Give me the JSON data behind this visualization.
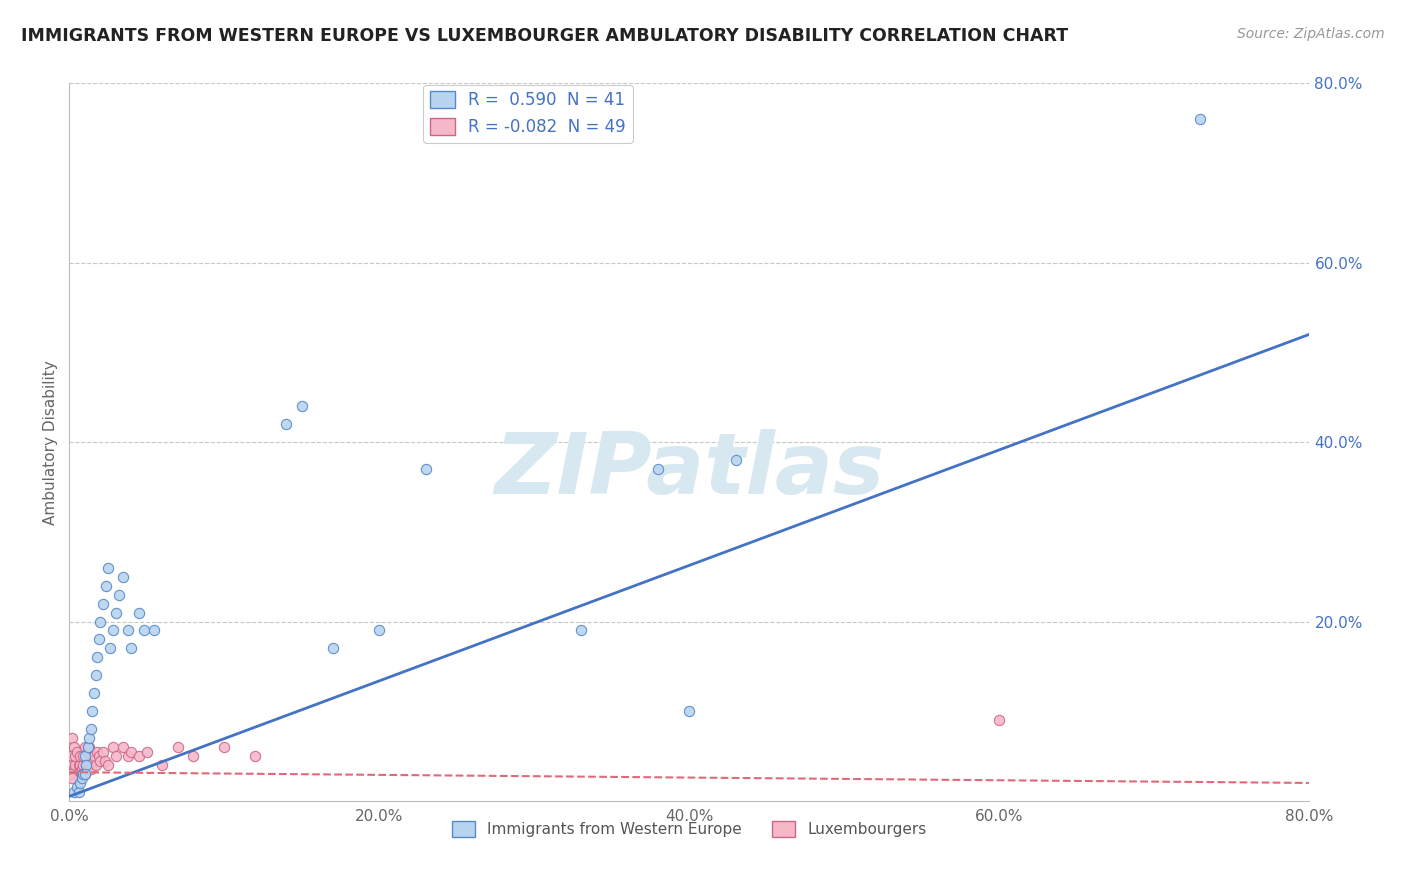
{
  "title": "IMMIGRANTS FROM WESTERN EUROPE VS LUXEMBOURGER AMBULATORY DISABILITY CORRELATION CHART",
  "source": "Source: ZipAtlas.com",
  "ylabel": "Ambulatory Disability",
  "xlim": [
    0.0,
    0.8
  ],
  "ylim": [
    0.0,
    0.8
  ],
  "xtick_labels": [
    "0.0%",
    "20.0%",
    "40.0%",
    "60.0%",
    "80.0%"
  ],
  "xtick_vals": [
    0.0,
    0.2,
    0.4,
    0.6,
    0.8
  ],
  "ytick_labels": [
    "80.0%",
    "60.0%",
    "40.0%",
    "20.0%"
  ],
  "ytick_vals": [
    0.8,
    0.6,
    0.4,
    0.2
  ],
  "grid_color": "#c8c8c8",
  "bg_color": "#ffffff",
  "blue_R": 0.59,
  "blue_N": 41,
  "pink_R": -0.082,
  "pink_N": 49,
  "blue_color": "#b8d4ee",
  "pink_color": "#f5b8c8",
  "blue_edge_color": "#5588cc",
  "pink_edge_color": "#cc6688",
  "blue_line_color": "#4472c4",
  "pink_line_color": "#e06878",
  "blue_line_x0": 0.0,
  "blue_line_y0": 0.005,
  "blue_line_x1": 0.8,
  "blue_line_y1": 0.52,
  "pink_line_x0": 0.0,
  "pink_line_y0": 0.032,
  "pink_line_x1": 0.8,
  "pink_line_y1": 0.02,
  "blue_scatter": [
    [
      0.003,
      0.01
    ],
    [
      0.005,
      0.015
    ],
    [
      0.006,
      0.01
    ],
    [
      0.007,
      0.02
    ],
    [
      0.008,
      0.025
    ],
    [
      0.009,
      0.03
    ],
    [
      0.01,
      0.05
    ],
    [
      0.011,
      0.04
    ],
    [
      0.012,
      0.06
    ],
    [
      0.013,
      0.07
    ],
    [
      0.014,
      0.08
    ],
    [
      0.015,
      0.1
    ],
    [
      0.016,
      0.12
    ],
    [
      0.017,
      0.14
    ],
    [
      0.018,
      0.16
    ],
    [
      0.019,
      0.18
    ],
    [
      0.02,
      0.2
    ],
    [
      0.022,
      0.22
    ],
    [
      0.024,
      0.24
    ],
    [
      0.025,
      0.26
    ],
    [
      0.026,
      0.17
    ],
    [
      0.028,
      0.19
    ],
    [
      0.03,
      0.21
    ],
    [
      0.032,
      0.23
    ],
    [
      0.035,
      0.25
    ],
    [
      0.038,
      0.19
    ],
    [
      0.04,
      0.17
    ],
    [
      0.045,
      0.21
    ],
    [
      0.048,
      0.19
    ],
    [
      0.055,
      0.19
    ],
    [
      0.14,
      0.42
    ],
    [
      0.15,
      0.44
    ],
    [
      0.17,
      0.17
    ],
    [
      0.2,
      0.19
    ],
    [
      0.23,
      0.37
    ],
    [
      0.33,
      0.19
    ],
    [
      0.38,
      0.37
    ],
    [
      0.4,
      0.1
    ],
    [
      0.43,
      0.38
    ],
    [
      0.73,
      0.76
    ],
    [
      0.01,
      0.03
    ]
  ],
  "pink_scatter": [
    [
      0.001,
      0.05
    ],
    [
      0.002,
      0.07
    ],
    [
      0.002,
      0.04
    ],
    [
      0.003,
      0.035
    ],
    [
      0.003,
      0.06
    ],
    [
      0.004,
      0.04
    ],
    [
      0.004,
      0.05
    ],
    [
      0.005,
      0.03
    ],
    [
      0.005,
      0.055
    ],
    [
      0.006,
      0.04
    ],
    [
      0.006,
      0.025
    ],
    [
      0.007,
      0.04
    ],
    [
      0.007,
      0.05
    ],
    [
      0.008,
      0.035
    ],
    [
      0.008,
      0.03
    ],
    [
      0.009,
      0.04
    ],
    [
      0.009,
      0.05
    ],
    [
      0.01,
      0.06
    ],
    [
      0.01,
      0.03
    ],
    [
      0.011,
      0.04
    ],
    [
      0.012,
      0.035
    ],
    [
      0.012,
      0.055
    ],
    [
      0.013,
      0.04
    ],
    [
      0.013,
      0.06
    ],
    [
      0.014,
      0.035
    ],
    [
      0.015,
      0.045
    ],
    [
      0.016,
      0.05
    ],
    [
      0.017,
      0.04
    ],
    [
      0.018,
      0.055
    ],
    [
      0.019,
      0.05
    ],
    [
      0.02,
      0.045
    ],
    [
      0.022,
      0.055
    ],
    [
      0.023,
      0.045
    ],
    [
      0.025,
      0.04
    ],
    [
      0.028,
      0.06
    ],
    [
      0.03,
      0.05
    ],
    [
      0.035,
      0.06
    ],
    [
      0.038,
      0.05
    ],
    [
      0.04,
      0.055
    ],
    [
      0.045,
      0.05
    ],
    [
      0.05,
      0.055
    ],
    [
      0.06,
      0.04
    ],
    [
      0.07,
      0.06
    ],
    [
      0.08,
      0.05
    ],
    [
      0.1,
      0.06
    ],
    [
      0.12,
      0.05
    ],
    [
      0.001,
      0.03
    ],
    [
      0.002,
      0.025
    ],
    [
      0.6,
      0.09
    ]
  ],
  "watermark_text": "ZIPatlas",
  "watermark_color": "#d8e8f0",
  "legend_entries": [
    "Immigrants from Western Europe",
    "Luxembourgers"
  ]
}
